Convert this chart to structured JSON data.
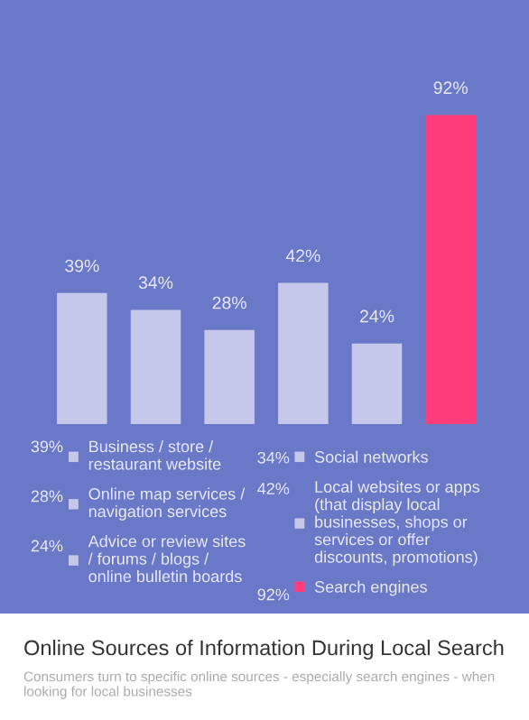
{
  "chart_data": {
    "type": "bar",
    "title": "Online Sources of Information During Local Search",
    "subtitle": "Consumers turn to specific online sources - especially search engines - when looking for local businesses",
    "categories": [
      null,
      null,
      null,
      null,
      null,
      null
    ],
    "series": [
      {
        "name": "Business / store / restaurant website",
        "color": "#c5c8ea",
        "values": [
          39,
          null,
          null,
          null,
          null,
          null
        ],
        "value_labels": [
          "39%",
          null,
          null,
          null,
          null,
          null
        ]
      },
      {
        "name": "Social networks",
        "color": "#c5c8ea",
        "values": [
          null,
          34,
          null,
          null,
          null,
          null
        ],
        "value_labels": [
          null,
          "34%",
          null,
          null,
          null,
          null
        ]
      },
      {
        "name": "Online map services / navigation services",
        "color": "#c5c8ea",
        "values": [
          null,
          null,
          28,
          null,
          null,
          null
        ],
        "value_labels": [
          null,
          null,
          "28%",
          null,
          null,
          null
        ]
      },
      {
        "name": "Local websites or apps (that display local businesses, shops or services or offer discounts, promotions)",
        "color": "#c5c8ea",
        "values": [
          null,
          null,
          null,
          42,
          null,
          null
        ],
        "value_labels": [
          null,
          null,
          null,
          "42%",
          null,
          null
        ]
      },
      {
        "name": "Advice or review sites / forums / blogs / online bulletin boards",
        "color": "#c5c8ea",
        "values": [
          null,
          null,
          null,
          null,
          24,
          null
        ],
        "value_labels": [
          null,
          null,
          null,
          null,
          "24%",
          null
        ]
      },
      {
        "name": "Search engines",
        "color": "#ff3b7a",
        "values": [
          null,
          null,
          null,
          null,
          null,
          92
        ],
        "value_labels": [
          null,
          null,
          null,
          null,
          null,
          "92%"
        ]
      }
    ],
    "stacked": true,
    "legend": "bottom"
  }
}
